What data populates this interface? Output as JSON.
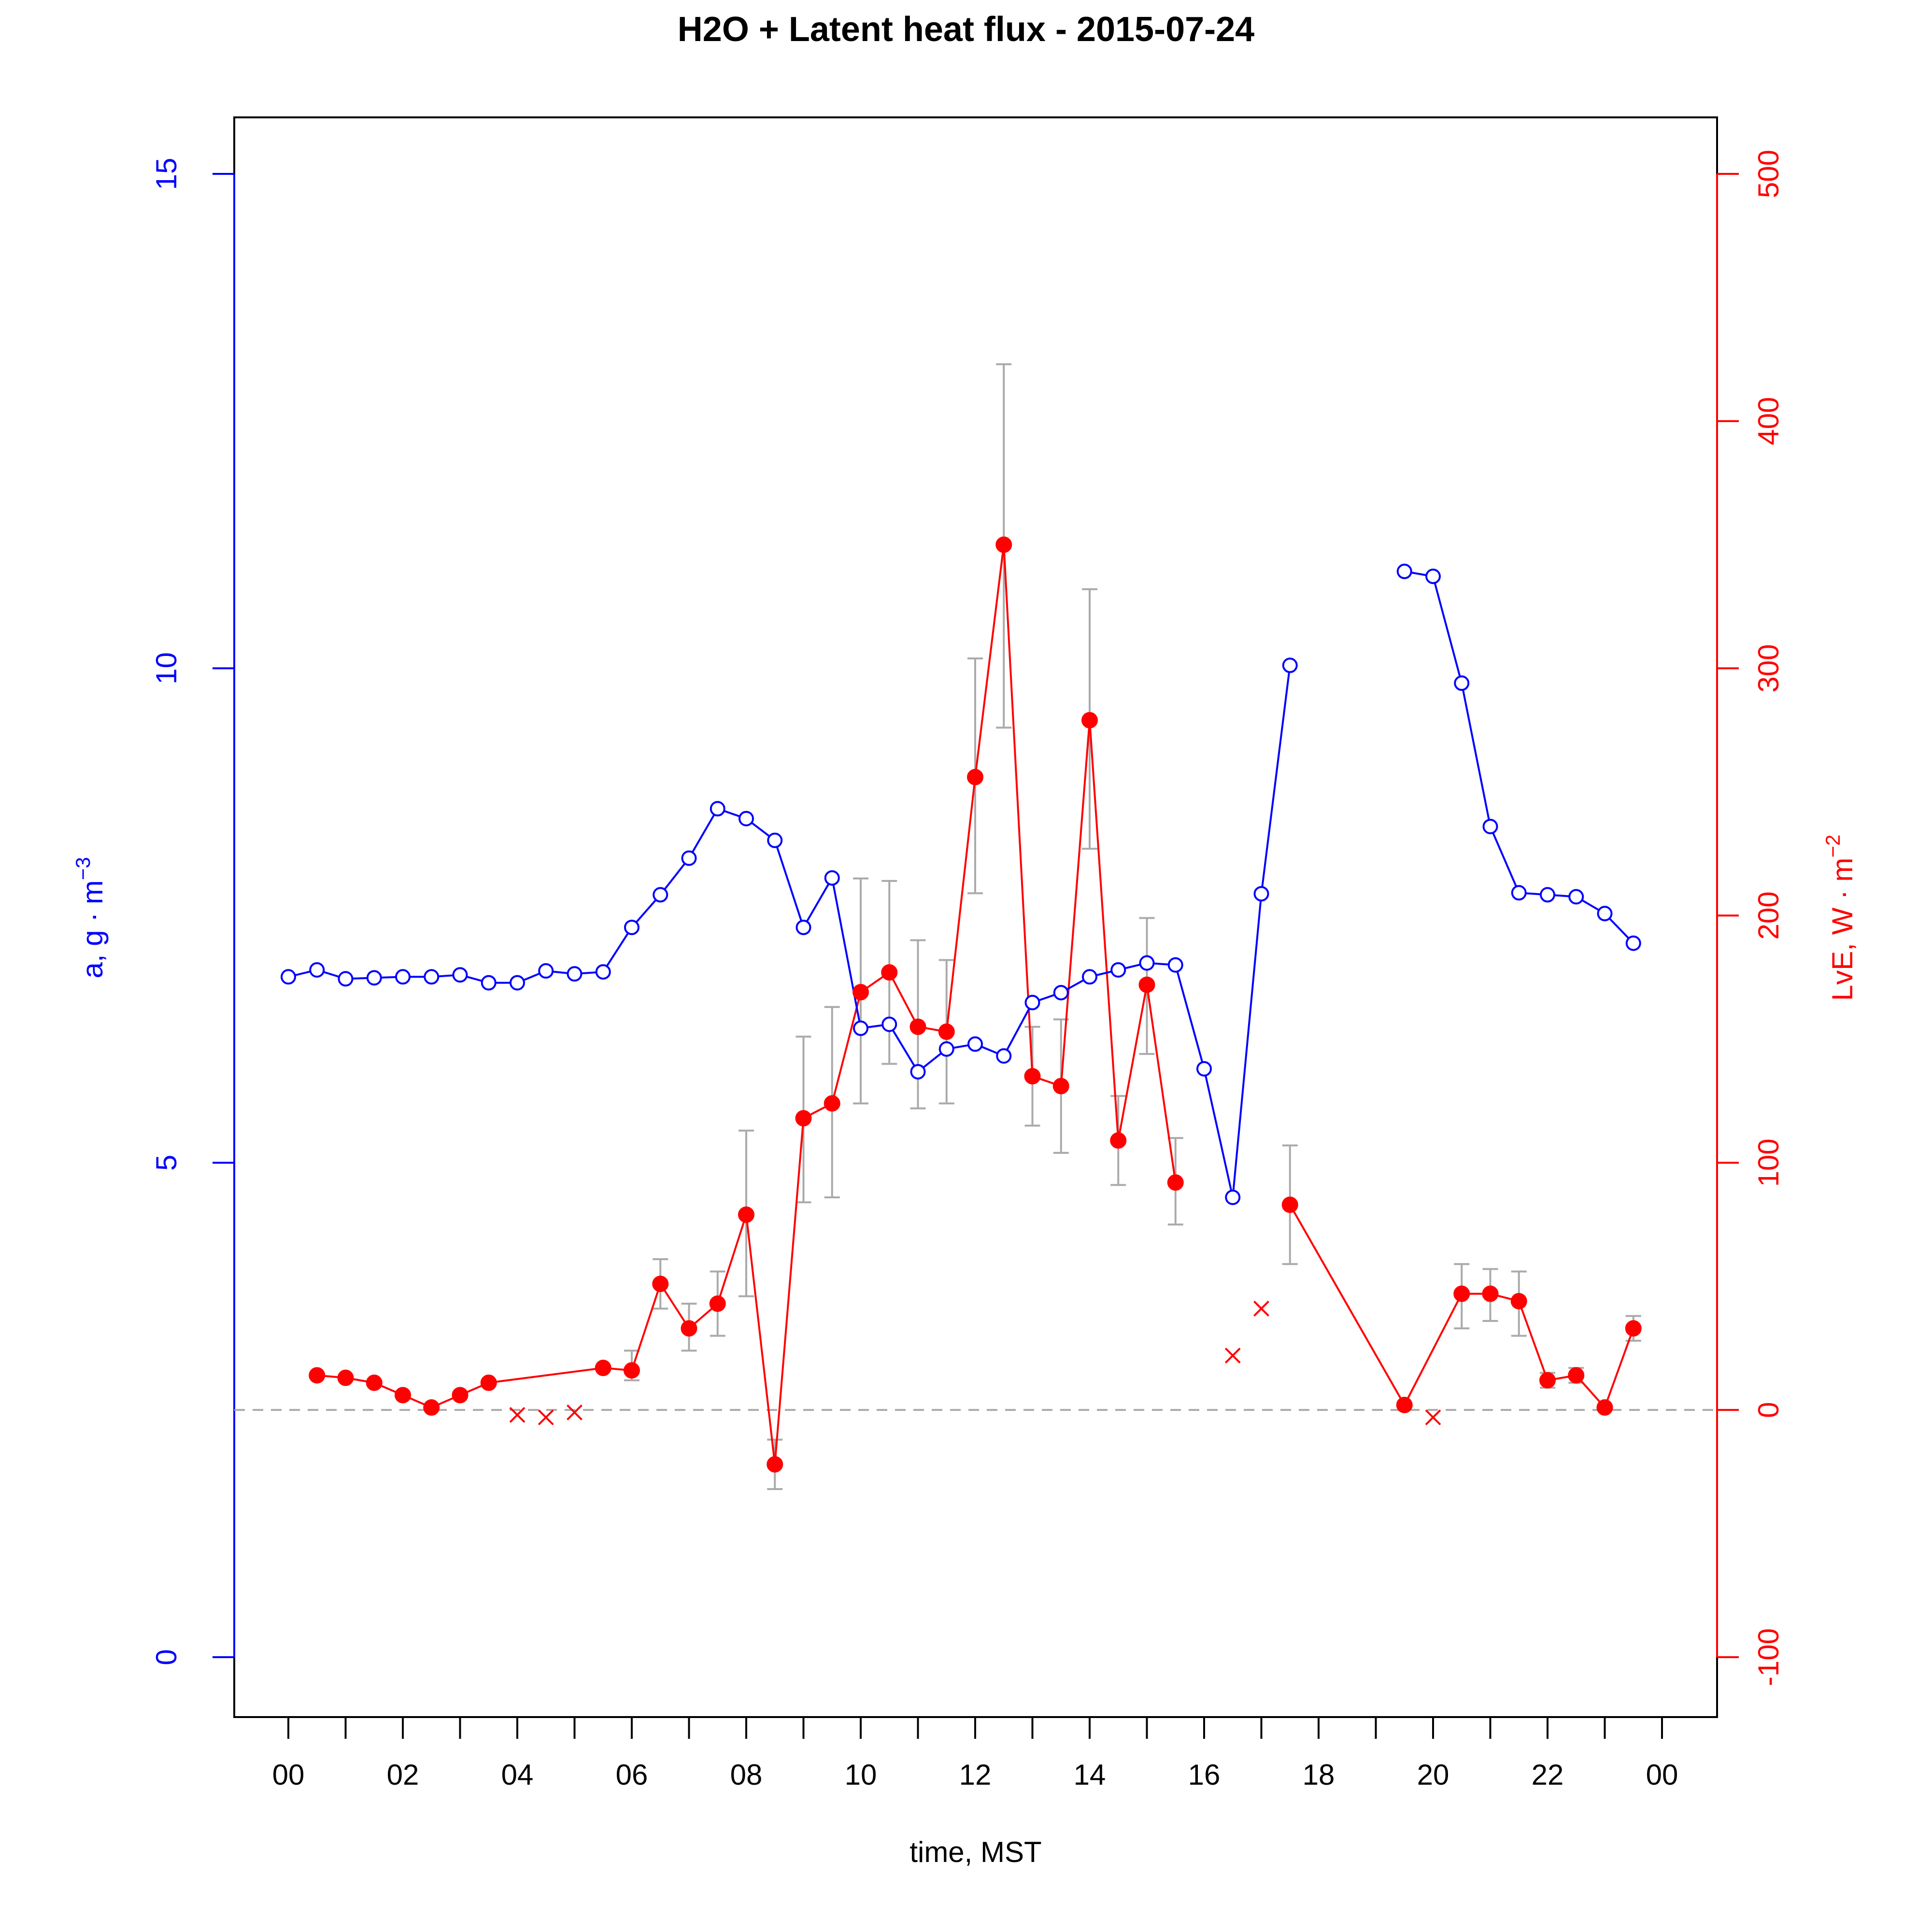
{
  "chart_data": {
    "type": "line",
    "title": "H2O + Latent heat flux -  2015-07-24",
    "xlabel": "time, MST",
    "xlim": [
      0,
      24
    ],
    "x_tick_labels": [
      "00",
      "02",
      "04",
      "06",
      "08",
      "10",
      "12",
      "14",
      "16",
      "18",
      "20",
      "22",
      "00"
    ],
    "y_left": {
      "label_base": "a, g · m",
      "label_exp": "−3",
      "ylim": [
        0,
        15
      ],
      "ticks": [
        0,
        5,
        10,
        15
      ],
      "color": "#0000ff"
    },
    "y_right": {
      "label_base": "LvE, W · m",
      "label_exp": "−2",
      "ylim": [
        -100,
        500
      ],
      "ticks": [
        -100,
        0,
        100,
        200,
        300,
        400,
        500
      ],
      "color": "#ff0000"
    },
    "zero_line": {
      "value": 0,
      "axis": "right",
      "color": "#aaaaaa"
    },
    "series": [
      {
        "axis": "left",
        "style": "line-open-circles",
        "color": "#0000ff",
        "points": [
          [
            0.0,
            6.88
          ],
          [
            0.5,
            6.95
          ],
          [
            1.0,
            6.86
          ],
          [
            1.5,
            6.87
          ],
          [
            2.0,
            6.88
          ],
          [
            2.5,
            6.88
          ],
          [
            3.0,
            6.9
          ],
          [
            3.5,
            6.82
          ],
          [
            4.0,
            6.82
          ],
          [
            4.5,
            6.94
          ],
          [
            5.0,
            6.91
          ],
          [
            5.5,
            6.93
          ],
          [
            6.0,
            7.38
          ],
          [
            6.5,
            7.71
          ],
          [
            7.0,
            8.08
          ],
          [
            7.5,
            8.58
          ],
          [
            8.0,
            8.48
          ],
          [
            8.5,
            8.26
          ],
          [
            9.0,
            7.38
          ],
          [
            9.5,
            7.88
          ],
          [
            10.0,
            6.36
          ],
          [
            10.5,
            6.4
          ],
          [
            11.0,
            5.92
          ],
          [
            11.5,
            6.15
          ],
          [
            12.0,
            6.2
          ],
          [
            12.5,
            6.08
          ],
          [
            13.0,
            6.62
          ],
          [
            13.5,
            6.72
          ],
          [
            14.0,
            6.88
          ],
          [
            14.5,
            6.95
          ],
          [
            15.0,
            7.02
          ],
          [
            15.5,
            7.0
          ],
          [
            16.0,
            5.95
          ],
          [
            16.5,
            4.65
          ],
          [
            17.0,
            7.72
          ],
          [
            17.5,
            10.03
          ],
          null,
          [
            19.5,
            10.98
          ],
          [
            20.0,
            10.93
          ],
          [
            20.5,
            9.85
          ],
          [
            21.0,
            8.4
          ],
          [
            21.5,
            7.73
          ],
          [
            22.0,
            7.71
          ],
          [
            22.5,
            7.69
          ],
          [
            23.0,
            7.52
          ],
          [
            23.5,
            7.22
          ]
        ]
      },
      {
        "axis": "right",
        "style": "line-filled-circles-errorbars",
        "color": "#ff0000",
        "errorbar_color": "#aaaaaa",
        "points": [
          {
            "x": 0.5,
            "y": 14
          },
          {
            "x": 1.0,
            "y": 13
          },
          {
            "x": 1.5,
            "y": 11
          },
          {
            "x": 2.0,
            "y": 6
          },
          {
            "x": 2.5,
            "y": 1
          },
          {
            "x": 3.0,
            "y": 6
          },
          {
            "x": 3.5,
            "y": 11
          },
          {
            "x": 5.5,
            "y": 17
          },
          {
            "x": 6.0,
            "y": 16,
            "lo": 12,
            "hi": 24
          },
          {
            "x": 6.5,
            "y": 51,
            "lo": 41,
            "hi": 61
          },
          {
            "x": 7.0,
            "y": 33,
            "lo": 24,
            "hi": 43
          },
          {
            "x": 7.5,
            "y": 43,
            "lo": 30,
            "hi": 56
          },
          {
            "x": 8.0,
            "y": 79,
            "lo": 46,
            "hi": 113
          },
          {
            "x": 8.5,
            "y": -22,
            "lo": -32,
            "hi": -12
          },
          {
            "x": 9.0,
            "y": 118,
            "lo": 84,
            "hi": 151
          },
          {
            "x": 9.5,
            "y": 124,
            "lo": 86,
            "hi": 163
          },
          {
            "x": 10.0,
            "y": 169,
            "lo": 124,
            "hi": 215
          },
          {
            "x": 10.5,
            "y": 177,
            "lo": 140,
            "hi": 214
          },
          {
            "x": 11.0,
            "y": 155,
            "lo": 122,
            "hi": 190
          },
          {
            "x": 11.5,
            "y": 153,
            "lo": 124,
            "hi": 182
          },
          {
            "x": 12.0,
            "y": 256,
            "lo": 209,
            "hi": 304
          },
          {
            "x": 12.5,
            "y": 350,
            "lo": 276,
            "hi": 423
          },
          {
            "x": 13.0,
            "y": 135,
            "lo": 115,
            "hi": 155
          },
          {
            "x": 13.5,
            "y": 131,
            "lo": 104,
            "hi": 158
          },
          {
            "x": 14.0,
            "y": 279,
            "lo": 227,
            "hi": 332
          },
          {
            "x": 14.5,
            "y": 109,
            "lo": 91,
            "hi": 127
          },
          {
            "x": 15.0,
            "y": 172,
            "lo": 144,
            "hi": 199
          },
          {
            "x": 15.5,
            "y": 92,
            "lo": 75,
            "hi": 110
          },
          null,
          {
            "x": 17.5,
            "y": 83,
            "lo": 59,
            "hi": 107
          },
          {
            "x": 19.5,
            "y": 2
          },
          {
            "x": 20.5,
            "y": 47,
            "lo": 33,
            "hi": 59
          },
          {
            "x": 21.0,
            "y": 47,
            "lo": 36,
            "hi": 57
          },
          {
            "x": 21.5,
            "y": 44,
            "lo": 30,
            "hi": 56
          },
          {
            "x": 22.0,
            "y": 12,
            "lo": 9,
            "hi": 15
          },
          {
            "x": 22.5,
            "y": 14,
            "lo": 11,
            "hi": 17
          },
          {
            "x": 23.0,
            "y": 1
          },
          {
            "x": 23.5,
            "y": 33,
            "lo": 28,
            "hi": 38
          }
        ]
      },
      {
        "axis": "right",
        "style": "x-markers",
        "color": "#ff0000",
        "points": [
          [
            4.0,
            -2
          ],
          [
            4.5,
            -3
          ],
          [
            5.0,
            -1
          ],
          [
            16.5,
            22
          ],
          [
            17.0,
            41
          ],
          [
            20.0,
            -3
          ]
        ]
      }
    ]
  }
}
